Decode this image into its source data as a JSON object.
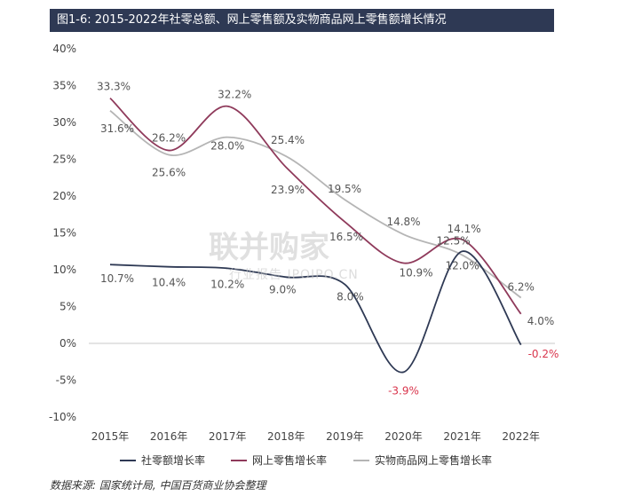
{
  "title": "图1-6: 2015-2022年社零总额、网上零售额及实物商品网上零售额增长情况",
  "source_note": "数据来源: 国家统计局, 中国百货商业协会整理",
  "watermark": {
    "main": "联并购家",
    "sub": "行业报告 IPOIPO.CN"
  },
  "colors": {
    "title_bg": "#2e3954",
    "negative_label": "#d9354c"
  },
  "chart_data": {
    "type": "line",
    "categories": [
      "2015年",
      "2016年",
      "2017年",
      "2018年",
      "2019年",
      "2020年",
      "2021年",
      "2022年"
    ],
    "ylim": [
      -10,
      40
    ],
    "yticks": [
      -10,
      -5,
      0,
      5,
      10,
      15,
      20,
      25,
      30,
      35,
      40
    ],
    "ytick_labels": [
      "-10%",
      "-5%",
      "0%",
      "5%",
      "10%",
      "15%",
      "20%",
      "25%",
      "30%",
      "35%",
      "40%"
    ],
    "grid": false,
    "legend_position": "bottom",
    "series": [
      {
        "name": "社零额增长率",
        "color": "#2e3954",
        "values": [
          10.7,
          10.4,
          10.2,
          9.0,
          8.0,
          -3.9,
          12.5,
          -0.2
        ],
        "labels": [
          "10.7%",
          "10.4%",
          "10.2%",
          "9.0%",
          "8.0%",
          "-3.9%",
          "12.5%",
          "-0.2%"
        ]
      },
      {
        "name": "网上零售增长率",
        "color": "#8f3a5b",
        "values": [
          33.3,
          26.2,
          32.2,
          23.9,
          16.5,
          10.9,
          14.1,
          4.0
        ],
        "labels": [
          "33.3%",
          "26.2%",
          "32.2%",
          "23.9%",
          "16.5%",
          "10.9%",
          "14.1%",
          "4.0%"
        ]
      },
      {
        "name": "实物商品网上零售增长率",
        "color": "#b5b5b5",
        "values": [
          31.6,
          25.6,
          28.0,
          25.4,
          19.5,
          14.8,
          12.0,
          6.2
        ],
        "labels": [
          "31.6%",
          "25.6%",
          "28.0%",
          "25.4%",
          "19.5%",
          "14.8%",
          "12.0%",
          "6.2%"
        ]
      }
    ]
  }
}
